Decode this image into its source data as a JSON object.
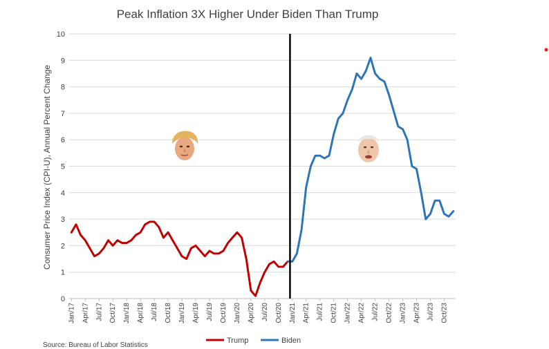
{
  "chart_data": {
    "type": "line",
    "title": "Peak Inflation 3X Higher Under Biden Than Trump",
    "ylabel": "Consumer Price Index (CPI-U), Annual Percent Change",
    "xlabel": "",
    "ylim": [
      0,
      10
    ],
    "yticks": [
      "0",
      "1",
      "2",
      "3",
      "4",
      "5",
      "6",
      "7",
      "8",
      "9",
      "10"
    ],
    "grid": true,
    "legend_position": "bottom",
    "source": "Source: Bureau of Labor Statistics",
    "divider_between": [
      "Dec/20",
      "Jan/21"
    ],
    "x_labels": [
      "Jan/17",
      "Apr/17",
      "Jul/17",
      "Oct/17",
      "Jan/18",
      "Apr/18",
      "Jul/18",
      "Oct/18",
      "Jan/19",
      "Apr/19",
      "Jul/19",
      "Oct/19",
      "Jan/20",
      "Apr/20",
      "Jul/20",
      "Oct/20",
      "Jan/21",
      "Apr/21",
      "Jul/21",
      "Oct/21",
      "Jan/22",
      "Apr/22",
      "Jul/22",
      "Oct/22",
      "Jan/23",
      "Apr/23",
      "Jul/23",
      "Oct/23"
    ],
    "series": [
      {
        "name": "Trump",
        "color": "#c00000",
        "start_month_index": 0,
        "values": [
          2.5,
          2.8,
          2.4,
          2.2,
          1.9,
          1.6,
          1.7,
          1.9,
          2.2,
          2.0,
          2.2,
          2.1,
          2.1,
          2.2,
          2.4,
          2.5,
          2.8,
          2.9,
          2.9,
          2.7,
          2.3,
          2.5,
          2.2,
          1.9,
          1.6,
          1.5,
          1.9,
          2.0,
          1.8,
          1.6,
          1.8,
          1.7,
          1.7,
          1.8,
          2.1,
          2.3,
          2.5,
          2.3,
          1.5,
          0.3,
          0.1,
          0.6,
          1.0,
          1.3,
          1.4,
          1.2,
          1.2,
          1.4
        ]
      },
      {
        "name": "Biden",
        "color": "#2e75b6",
        "start_month_index": 47,
        "values": [
          1.4,
          1.4,
          1.7,
          2.6,
          4.2,
          5.0,
          5.4,
          5.4,
          5.3,
          5.4,
          6.2,
          6.8,
          7.0,
          7.5,
          7.9,
          8.5,
          8.3,
          8.6,
          9.1,
          8.5,
          8.3,
          8.2,
          7.7,
          7.1,
          6.5,
          6.4,
          6.0,
          5.0,
          4.9,
          4.0,
          3.0,
          3.2,
          3.7,
          3.7,
          3.2,
          3.1,
          3.3
        ]
      }
    ],
    "annotations": [
      {
        "label": "Trump",
        "icon": "trump-face-icon"
      },
      {
        "label": "Biden",
        "icon": "biden-face-icon"
      }
    ]
  },
  "accent_dot_color": "#e41b1b"
}
